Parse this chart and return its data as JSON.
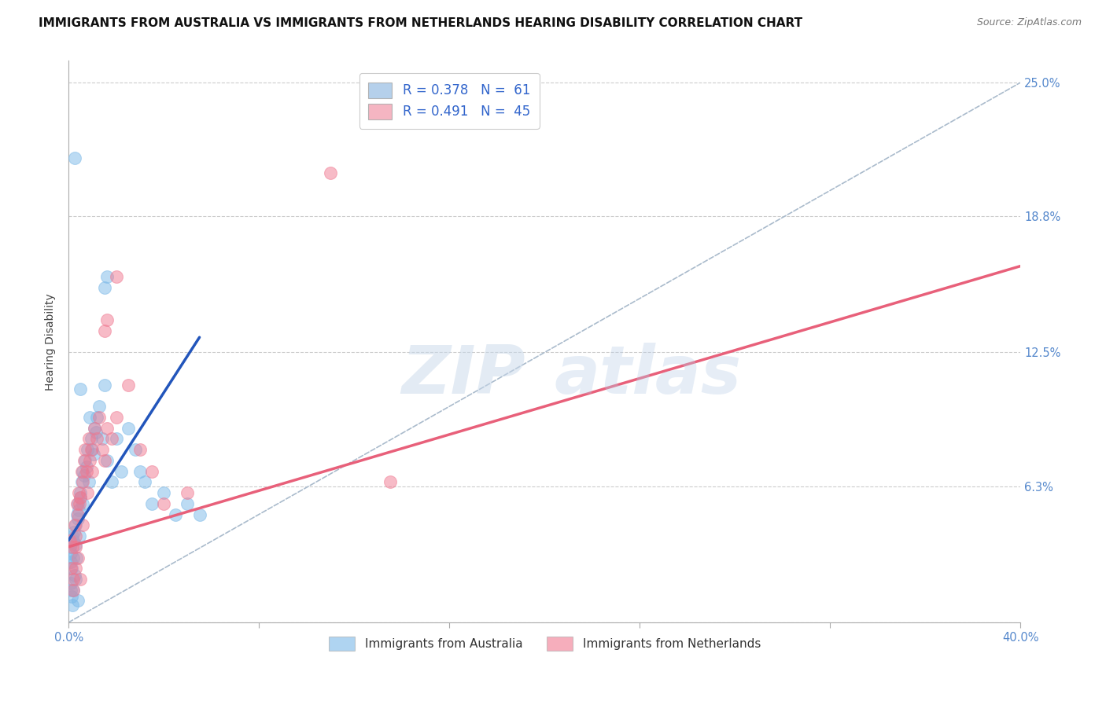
{
  "title": "IMMIGRANTS FROM AUSTRALIA VS IMMIGRANTS FROM NETHERLANDS HEARING DISABILITY CORRELATION CHART",
  "source": "Source: ZipAtlas.com",
  "xlabel": "",
  "ylabel": "Hearing Disability",
  "xlim": [
    0.0,
    40.0
  ],
  "ylim": [
    0.0,
    26.0
  ],
  "yticks": [
    0.0,
    6.3,
    12.5,
    18.8,
    25.0
  ],
  "xticks": [
    0.0,
    8.0,
    16.0,
    24.0,
    32.0,
    40.0
  ],
  "xtick_labels": [
    "0.0%",
    "",
    "",
    "",
    "",
    "40.0%"
  ],
  "ytick_labels": [
    "",
    "6.3%",
    "12.5%",
    "18.8%",
    "25.0%"
  ],
  "legend_entries": [
    {
      "label": "R = 0.378   N =  61",
      "color": "#a8c8e8"
    },
    {
      "label": "R = 0.491   N =  45",
      "color": "#f4a8b8"
    }
  ],
  "legend_footer": [
    "Immigrants from Australia",
    "Immigrants from Netherlands"
  ],
  "australia_color": "#7ab8e8",
  "netherlands_color": "#f07890",
  "regression_australia_color": "#2255bb",
  "regression_netherlands_color": "#e8607a",
  "dashed_line_color": "#aabbcc",
  "watermark_zip": "ZIP",
  "watermark_atlas": "atlas",
  "background_color": "#ffffff",
  "australia_points": [
    [
      0.05,
      3.5
    ],
    [
      0.08,
      2.8
    ],
    [
      0.1,
      3.2
    ],
    [
      0.12,
      2.5
    ],
    [
      0.15,
      4.0
    ],
    [
      0.18,
      3.8
    ],
    [
      0.2,
      3.0
    ],
    [
      0.22,
      4.2
    ],
    [
      0.25,
      2.2
    ],
    [
      0.28,
      3.6
    ],
    [
      0.3,
      4.5
    ],
    [
      0.32,
      3.0
    ],
    [
      0.35,
      5.0
    ],
    [
      0.38,
      4.8
    ],
    [
      0.4,
      5.5
    ],
    [
      0.42,
      5.2
    ],
    [
      0.45,
      4.0
    ],
    [
      0.48,
      6.0
    ],
    [
      0.5,
      5.8
    ],
    [
      0.55,
      6.5
    ],
    [
      0.58,
      5.5
    ],
    [
      0.6,
      7.0
    ],
    [
      0.65,
      6.8
    ],
    [
      0.7,
      7.5
    ],
    [
      0.75,
      7.2
    ],
    [
      0.8,
      8.0
    ],
    [
      0.85,
      6.5
    ],
    [
      0.9,
      9.5
    ],
    [
      0.95,
      8.5
    ],
    [
      1.0,
      8.0
    ],
    [
      1.05,
      7.8
    ],
    [
      1.1,
      9.0
    ],
    [
      1.15,
      8.8
    ],
    [
      1.2,
      9.5
    ],
    [
      1.3,
      10.0
    ],
    [
      1.4,
      8.5
    ],
    [
      1.5,
      11.0
    ],
    [
      1.6,
      7.5
    ],
    [
      1.8,
      6.5
    ],
    [
      2.0,
      8.5
    ],
    [
      2.2,
      7.0
    ],
    [
      2.5,
      9.0
    ],
    [
      2.8,
      8.0
    ],
    [
      3.0,
      7.0
    ],
    [
      3.2,
      6.5
    ],
    [
      3.5,
      5.5
    ],
    [
      4.0,
      6.0
    ],
    [
      4.5,
      5.0
    ],
    [
      5.0,
      5.5
    ],
    [
      5.5,
      5.0
    ],
    [
      0.25,
      21.5
    ],
    [
      1.5,
      15.5
    ],
    [
      1.6,
      16.0
    ],
    [
      0.5,
      10.8
    ],
    [
      0.1,
      1.5
    ],
    [
      0.08,
      1.8
    ],
    [
      0.12,
      1.2
    ],
    [
      0.15,
      0.8
    ],
    [
      0.2,
      1.5
    ],
    [
      0.3,
      2.0
    ],
    [
      0.4,
      1.0
    ]
  ],
  "netherlands_points": [
    [
      0.05,
      3.8
    ],
    [
      0.1,
      2.5
    ],
    [
      0.15,
      3.5
    ],
    [
      0.2,
      2.0
    ],
    [
      0.25,
      4.5
    ],
    [
      0.28,
      3.5
    ],
    [
      0.3,
      4.0
    ],
    [
      0.35,
      5.5
    ],
    [
      0.4,
      5.0
    ],
    [
      0.42,
      6.0
    ],
    [
      0.45,
      5.5
    ],
    [
      0.5,
      5.8
    ],
    [
      0.55,
      7.0
    ],
    [
      0.6,
      6.5
    ],
    [
      0.65,
      7.5
    ],
    [
      0.7,
      8.0
    ],
    [
      0.75,
      7.0
    ],
    [
      0.8,
      6.0
    ],
    [
      0.85,
      8.5
    ],
    [
      0.9,
      7.5
    ],
    [
      0.95,
      8.0
    ],
    [
      1.0,
      7.0
    ],
    [
      1.1,
      9.0
    ],
    [
      1.2,
      8.5
    ],
    [
      1.3,
      9.5
    ],
    [
      1.4,
      8.0
    ],
    [
      1.5,
      7.5
    ],
    [
      1.6,
      9.0
    ],
    [
      1.8,
      8.5
    ],
    [
      2.0,
      9.5
    ],
    [
      2.5,
      11.0
    ],
    [
      3.0,
      8.0
    ],
    [
      3.5,
      7.0
    ],
    [
      4.0,
      5.5
    ],
    [
      5.0,
      6.0
    ],
    [
      1.5,
      13.5
    ],
    [
      1.6,
      14.0
    ],
    [
      2.0,
      16.0
    ],
    [
      11.0,
      20.8
    ],
    [
      13.5,
      6.5
    ],
    [
      0.2,
      1.5
    ],
    [
      0.3,
      2.5
    ],
    [
      0.4,
      3.0
    ],
    [
      0.5,
      2.0
    ],
    [
      0.6,
      4.5
    ]
  ],
  "australia_line_x": [
    0.0,
    5.5
  ],
  "australia_line_y": [
    3.8,
    13.2
  ],
  "netherlands_line_x": [
    0.0,
    40.0
  ],
  "netherlands_line_y": [
    3.5,
    16.5
  ],
  "dashed_line_x": [
    0.0,
    40.0
  ],
  "dashed_line_y": [
    0.0,
    25.0
  ],
  "title_fontsize": 11,
  "source_fontsize": 9,
  "axis_label_fontsize": 10,
  "tick_fontsize": 10.5,
  "legend_fontsize": 12
}
